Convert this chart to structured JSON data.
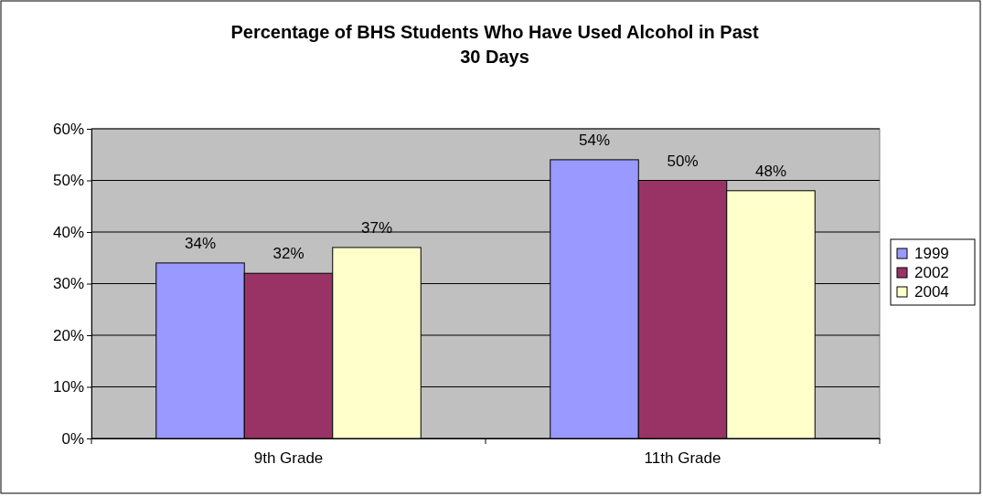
{
  "chart_data": {
    "type": "bar",
    "title": "Percentage of BHS Students Who Have Used Alcohol in Past 30 Days",
    "categories": [
      "9th Grade",
      "11th Grade"
    ],
    "series": [
      {
        "name": "1999",
        "color": "#9999ff",
        "values": [
          34,
          54
        ],
        "value_labels": [
          "34%",
          "54%"
        ]
      },
      {
        "name": "2002",
        "color": "#993366",
        "values": [
          32,
          50
        ],
        "value_labels": [
          "32%",
          "50%"
        ]
      },
      {
        "name": "2004",
        "color": "#ffffcc",
        "values": [
          37,
          48
        ],
        "value_labels": [
          "37%",
          "48%"
        ]
      }
    ],
    "ylim": [
      0,
      60
    ],
    "yticks": [
      {
        "value": 0,
        "label": "0%"
      },
      {
        "value": 10,
        "label": "10%"
      },
      {
        "value": 20,
        "label": "20%"
      },
      {
        "value": 30,
        "label": "30%"
      },
      {
        "value": 40,
        "label": "40%"
      },
      {
        "value": 50,
        "label": "50%"
      },
      {
        "value": 60,
        "label": "60%"
      }
    ],
    "grid": "y",
    "legend": "right"
  }
}
